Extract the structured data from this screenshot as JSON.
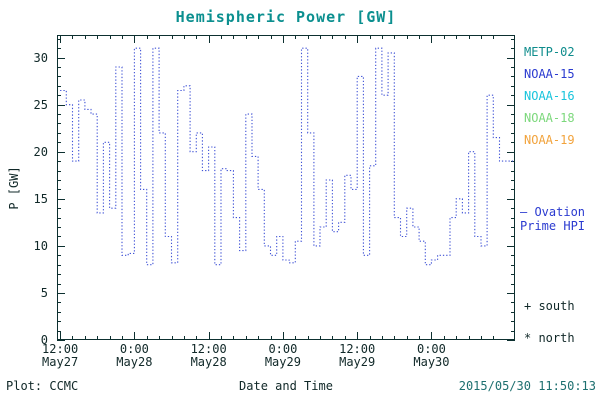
{
  "title": "Hemispheric Power [GW]",
  "colors": {
    "title": "#0b8f8f",
    "frame": "#0d3030",
    "axis_text": "#102828",
    "line_blue": "#4053d6",
    "ovation": "#2b3bd0",
    "timestamp": "#1e7070",
    "credit": "#102828"
  },
  "legend": {
    "satellites": [
      {
        "label": "METP-02",
        "color": "#0e8c8c"
      },
      {
        "label": "NOAA-15",
        "color": "#2b3bd0"
      },
      {
        "label": "NOAA-16",
        "color": "#18c4dc"
      },
      {
        "label": "NOAA-18",
        "color": "#7cd87c"
      },
      {
        "label": "NOAA-19",
        "color": "#f2a33c"
      }
    ]
  },
  "annotations": {
    "ovation_line1": "– Ovation",
    "ovation_line2": "Prime HPI",
    "south": "+ south",
    "north": "* north"
  },
  "footer": {
    "plot_credit": "Plot: CCMC",
    "xlabel": "Date and Time",
    "timestamp": "2015/05/30 11:50:13"
  },
  "chart_data": {
    "type": "line",
    "style": "dotted-step",
    "title": "Hemispheric Power [GW]",
    "xlabel": "Date and Time",
    "ylabel": "P [GW]",
    "ylim": [
      0,
      32.4
    ],
    "yticks": [
      0,
      5,
      10,
      15,
      20,
      25,
      30
    ],
    "x_domain": [
      -0.5,
      73.5
    ],
    "x_unit": "hours since 12:00 May27",
    "xticks": [
      {
        "hour": 0,
        "time": "12:00",
        "date": "May27"
      },
      {
        "hour": 12,
        "time": "0:00",
        "date": "May28"
      },
      {
        "hour": 24,
        "time": "12:00",
        "date": "May28"
      },
      {
        "hour": 36,
        "time": "0:00",
        "date": "May29"
      },
      {
        "hour": 48,
        "time": "12:00",
        "date": "May29"
      },
      {
        "hour": 60,
        "time": "0:00",
        "date": "May30"
      }
    ],
    "series": [
      {
        "name": "Ovation Prime HPI",
        "color": "#4053d6",
        "start_hour": 0,
        "step_hours": 1,
        "values": [
          26.5,
          25,
          19,
          25.5,
          24.5,
          24,
          13.5,
          21,
          14,
          29,
          9,
          9.2,
          31,
          16,
          8,
          31,
          22,
          11,
          8.2,
          26.5,
          27,
          20,
          22,
          18,
          20.5,
          8,
          18.2,
          18,
          13,
          9.5,
          24,
          19.5,
          16,
          10,
          9,
          11,
          8.5,
          8.2,
          10.5,
          31,
          22,
          10,
          12,
          17,
          11.5,
          12.5,
          17.5,
          16,
          28,
          9,
          18.5,
          31,
          26,
          30.5,
          13,
          11,
          14,
          12,
          10.5,
          8,
          8.5,
          9,
          9,
          13,
          15,
          13.5,
          20,
          11,
          10,
          26,
          21.5,
          19
        ]
      }
    ]
  }
}
